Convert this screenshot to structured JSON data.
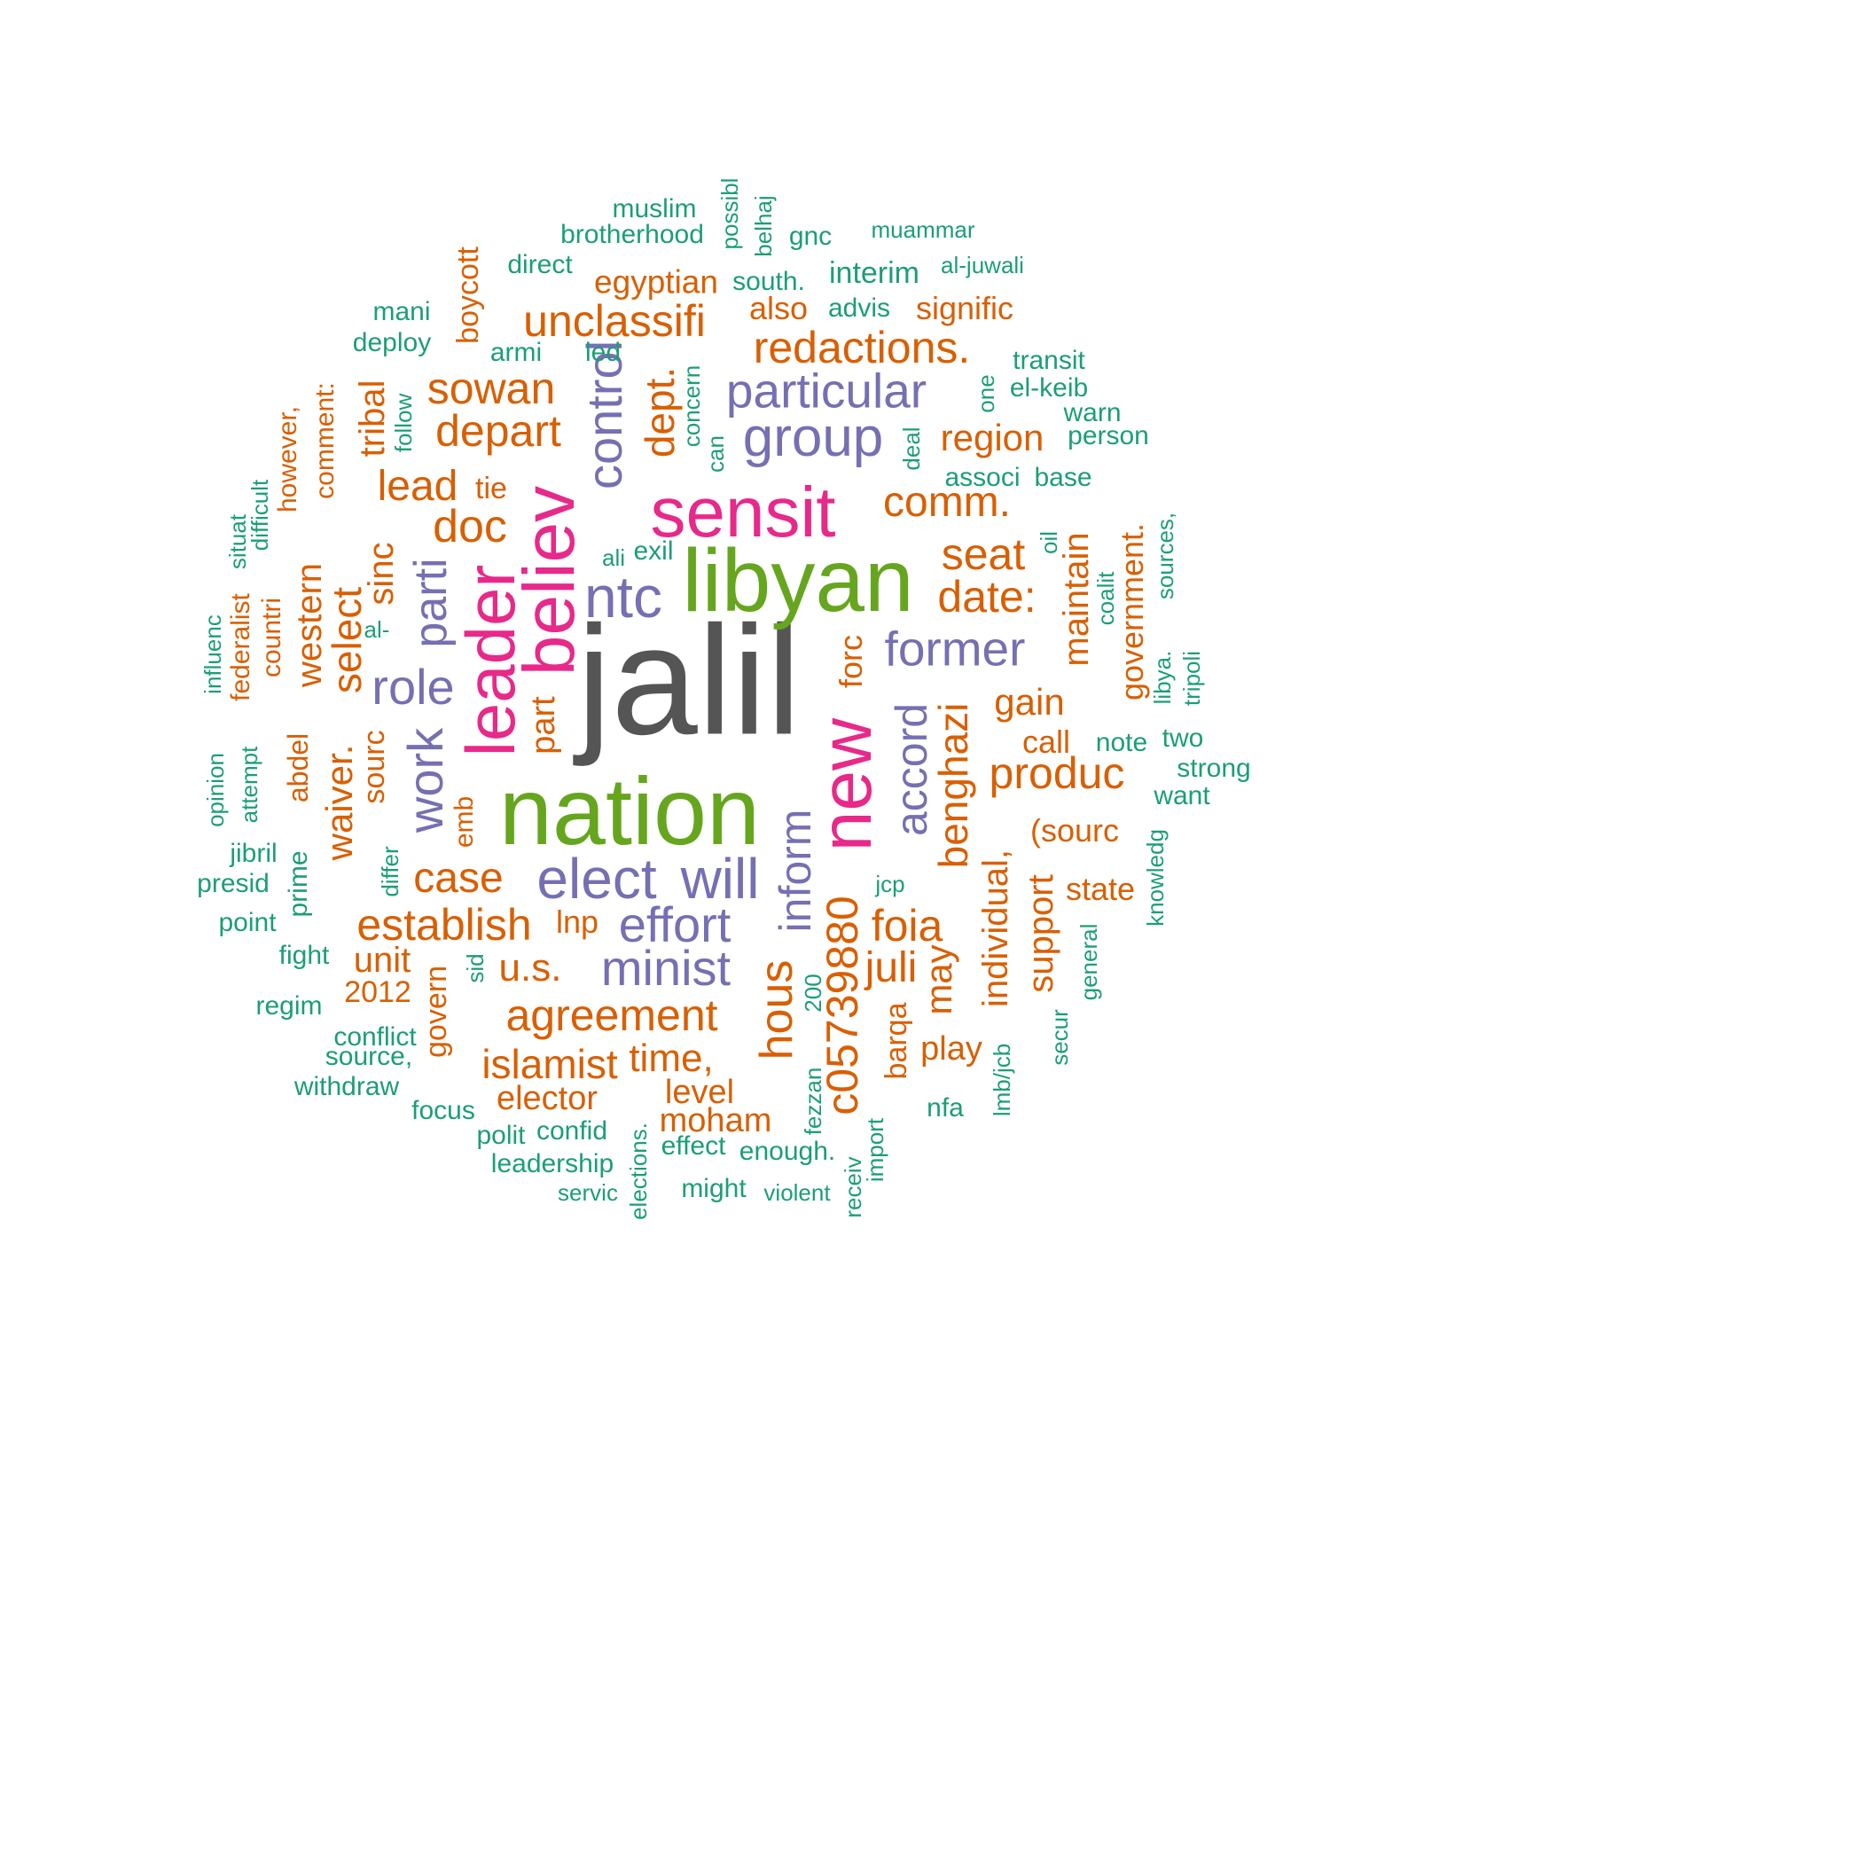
{
  "colors": {
    "green": "#1b9e77",
    "orange": "#d95f02",
    "purple": "#7570b3",
    "magenta": "#e7298a",
    "lime": "#66a61e",
    "gray": "#555555"
  },
  "words": [
    {
      "text": "jalil",
      "color": "gray"
    },
    {
      "text": "nation",
      "color": "lime"
    },
    {
      "text": "libyan",
      "color": "lime"
    },
    {
      "text": "sensit",
      "color": "magenta"
    },
    {
      "text": "believ",
      "color": "magenta"
    },
    {
      "text": "leader",
      "color": "magenta"
    },
    {
      "text": "new",
      "color": "magenta"
    },
    {
      "text": "ntc",
      "color": "purple"
    },
    {
      "text": "particular",
      "color": "purple"
    },
    {
      "text": "group",
      "color": "purple"
    },
    {
      "text": "control",
      "color": "purple"
    },
    {
      "text": "former",
      "color": "purple"
    },
    {
      "text": "role",
      "color": "purple"
    },
    {
      "text": "parti",
      "color": "purple"
    },
    {
      "text": "work",
      "color": "purple"
    },
    {
      "text": "elect",
      "color": "purple"
    },
    {
      "text": "will",
      "color": "purple"
    },
    {
      "text": "effort",
      "color": "purple"
    },
    {
      "text": "minist",
      "color": "purple"
    },
    {
      "text": "inform",
      "color": "purple"
    },
    {
      "text": "accord",
      "color": "purple"
    },
    {
      "text": "unclassifi",
      "color": "orange"
    },
    {
      "text": "redactions.",
      "color": "orange"
    },
    {
      "text": "egyptian",
      "color": "orange"
    },
    {
      "text": "sowan",
      "color": "orange"
    },
    {
      "text": "depart",
      "color": "orange"
    },
    {
      "text": "dept.",
      "color": "orange"
    },
    {
      "text": "comm.",
      "color": "orange"
    },
    {
      "text": "region",
      "color": "orange"
    },
    {
      "text": "lead",
      "color": "orange"
    },
    {
      "text": "tie",
      "color": "orange"
    },
    {
      "text": "doc",
      "color": "orange"
    },
    {
      "text": "seat",
      "color": "orange"
    },
    {
      "text": "date:",
      "color": "orange"
    },
    {
      "text": "gain",
      "color": "orange"
    },
    {
      "text": "call",
      "color": "orange"
    },
    {
      "text": "produc",
      "color": "orange"
    },
    {
      "text": "(sourc",
      "color": "orange"
    },
    {
      "text": "state",
      "color": "orange"
    },
    {
      "text": "case",
      "color": "orange"
    },
    {
      "text": "establish",
      "color": "orange"
    },
    {
      "text": "lnp",
      "color": "orange"
    },
    {
      "text": "unit",
      "color": "orange"
    },
    {
      "text": "2012",
      "color": "orange"
    },
    {
      "text": "u.s.",
      "color": "orange"
    },
    {
      "text": "agreement",
      "color": "orange"
    },
    {
      "text": "islamist",
      "color": "orange"
    },
    {
      "text": "time,",
      "color": "orange"
    },
    {
      "text": "elector",
      "color": "orange"
    },
    {
      "text": "level",
      "color": "orange"
    },
    {
      "text": "moham",
      "color": "orange"
    },
    {
      "text": "foia",
      "color": "orange"
    },
    {
      "text": "juli",
      "color": "orange"
    },
    {
      "text": "play",
      "color": "orange"
    },
    {
      "text": "also",
      "color": "orange"
    },
    {
      "text": "signific",
      "color": "orange"
    },
    {
      "text": "boycott",
      "color": "orange"
    },
    {
      "text": "tribal",
      "color": "orange"
    },
    {
      "text": "comment:",
      "color": "orange"
    },
    {
      "text": "however,",
      "color": "orange"
    },
    {
      "text": "sinc",
      "color": "orange"
    },
    {
      "text": "select",
      "color": "orange"
    },
    {
      "text": "western",
      "color": "orange"
    },
    {
      "text": "countri",
      "color": "orange"
    },
    {
      "text": "federalist",
      "color": "orange"
    },
    {
      "text": "waiver.",
      "color": "orange"
    },
    {
      "text": "sourc",
      "color": "orange"
    },
    {
      "text": "abdel",
      "color": "orange"
    },
    {
      "text": "part",
      "color": "orange"
    },
    {
      "text": "forc",
      "color": "orange"
    },
    {
      "text": "emb",
      "color": "orange"
    },
    {
      "text": "govern",
      "color": "orange"
    },
    {
      "text": "benghazi",
      "color": "orange"
    },
    {
      "text": "maintain",
      "color": "orange"
    },
    {
      "text": "government.",
      "color": "orange"
    },
    {
      "text": "individual,",
      "color": "orange"
    },
    {
      "text": "support",
      "color": "orange"
    },
    {
      "text": "c05739880",
      "color": "orange"
    },
    {
      "text": "hous",
      "color": "orange"
    },
    {
      "text": "may",
      "color": "orange"
    },
    {
      "text": "barqa",
      "color": "orange"
    },
    {
      "text": "muslim",
      "color": "green"
    },
    {
      "text": "brotherhood",
      "color": "green"
    },
    {
      "text": "direct",
      "color": "green"
    },
    {
      "text": "possibl",
      "color": "green"
    },
    {
      "text": "belhaj",
      "color": "green"
    },
    {
      "text": "gnc",
      "color": "green"
    },
    {
      "text": "muammar",
      "color": "green"
    },
    {
      "text": "al-juwali",
      "color": "green"
    },
    {
      "text": "interim",
      "color": "green"
    },
    {
      "text": "south.",
      "color": "green"
    },
    {
      "text": "advis",
      "color": "green"
    },
    {
      "text": "mani",
      "color": "green"
    },
    {
      "text": "deploy",
      "color": "green"
    },
    {
      "text": "armi",
      "color": "green"
    },
    {
      "text": "led",
      "color": "green"
    },
    {
      "text": "transit",
      "color": "green"
    },
    {
      "text": "el-keib",
      "color": "green"
    },
    {
      "text": "warn",
      "color": "green"
    },
    {
      "text": "person",
      "color": "green"
    },
    {
      "text": "one",
      "color": "green"
    },
    {
      "text": "associ",
      "color": "green"
    },
    {
      "text": "base",
      "color": "green"
    },
    {
      "text": "deal",
      "color": "green"
    },
    {
      "text": "concern",
      "color": "green"
    },
    {
      "text": "can",
      "color": "green"
    },
    {
      "text": "follow",
      "color": "green"
    },
    {
      "text": "difficult",
      "color": "green"
    },
    {
      "text": "situat",
      "color": "green"
    },
    {
      "text": "influenc",
      "color": "green"
    },
    {
      "text": "ali",
      "color": "green"
    },
    {
      "text": "exil",
      "color": "green"
    },
    {
      "text": "al-",
      "color": "green"
    },
    {
      "text": "oil",
      "color": "green"
    },
    {
      "text": "coalit",
      "color": "green"
    },
    {
      "text": "sources,",
      "color": "green"
    },
    {
      "text": "libya.",
      "color": "green"
    },
    {
      "text": "tripoli",
      "color": "green"
    },
    {
      "text": "note",
      "color": "green"
    },
    {
      "text": "two",
      "color": "green"
    },
    {
      "text": "strong",
      "color": "green"
    },
    {
      "text": "want",
      "color": "green"
    },
    {
      "text": "knowledg",
      "color": "green"
    },
    {
      "text": "opinion",
      "color": "green"
    },
    {
      "text": "attempt",
      "color": "green"
    },
    {
      "text": "jibril",
      "color": "green"
    },
    {
      "text": "presid",
      "color": "green"
    },
    {
      "text": "differ",
      "color": "green"
    },
    {
      "text": "prime",
      "color": "green"
    },
    {
      "text": "point",
      "color": "green"
    },
    {
      "text": "fight",
      "color": "green"
    },
    {
      "text": "regim",
      "color": "green"
    },
    {
      "text": "sid",
      "color": "green"
    },
    {
      "text": "conflict",
      "color": "green"
    },
    {
      "text": "source,",
      "color": "green"
    },
    {
      "text": "withdraw",
      "color": "green"
    },
    {
      "text": "focus",
      "color": "green"
    },
    {
      "text": "polit",
      "color": "green"
    },
    {
      "text": "confid",
      "color": "green"
    },
    {
      "text": "leadership",
      "color": "green"
    },
    {
      "text": "servic",
      "color": "green"
    },
    {
      "text": "elections.",
      "color": "green"
    },
    {
      "text": "effect",
      "color": "green"
    },
    {
      "text": "enough.",
      "color": "green"
    },
    {
      "text": "might",
      "color": "green"
    },
    {
      "text": "violent",
      "color": "green"
    },
    {
      "text": "fezzan",
      "color": "green"
    },
    {
      "text": "200",
      "color": "green"
    },
    {
      "text": "receiv",
      "color": "green"
    },
    {
      "text": "import",
      "color": "green"
    },
    {
      "text": "jcp",
      "color": "green"
    },
    {
      "text": "nfa",
      "color": "green"
    },
    {
      "text": "lmb/jcb",
      "color": "green"
    },
    {
      "text": "secur",
      "color": "green"
    },
    {
      "text": "general",
      "color": "green"
    }
  ]
}
